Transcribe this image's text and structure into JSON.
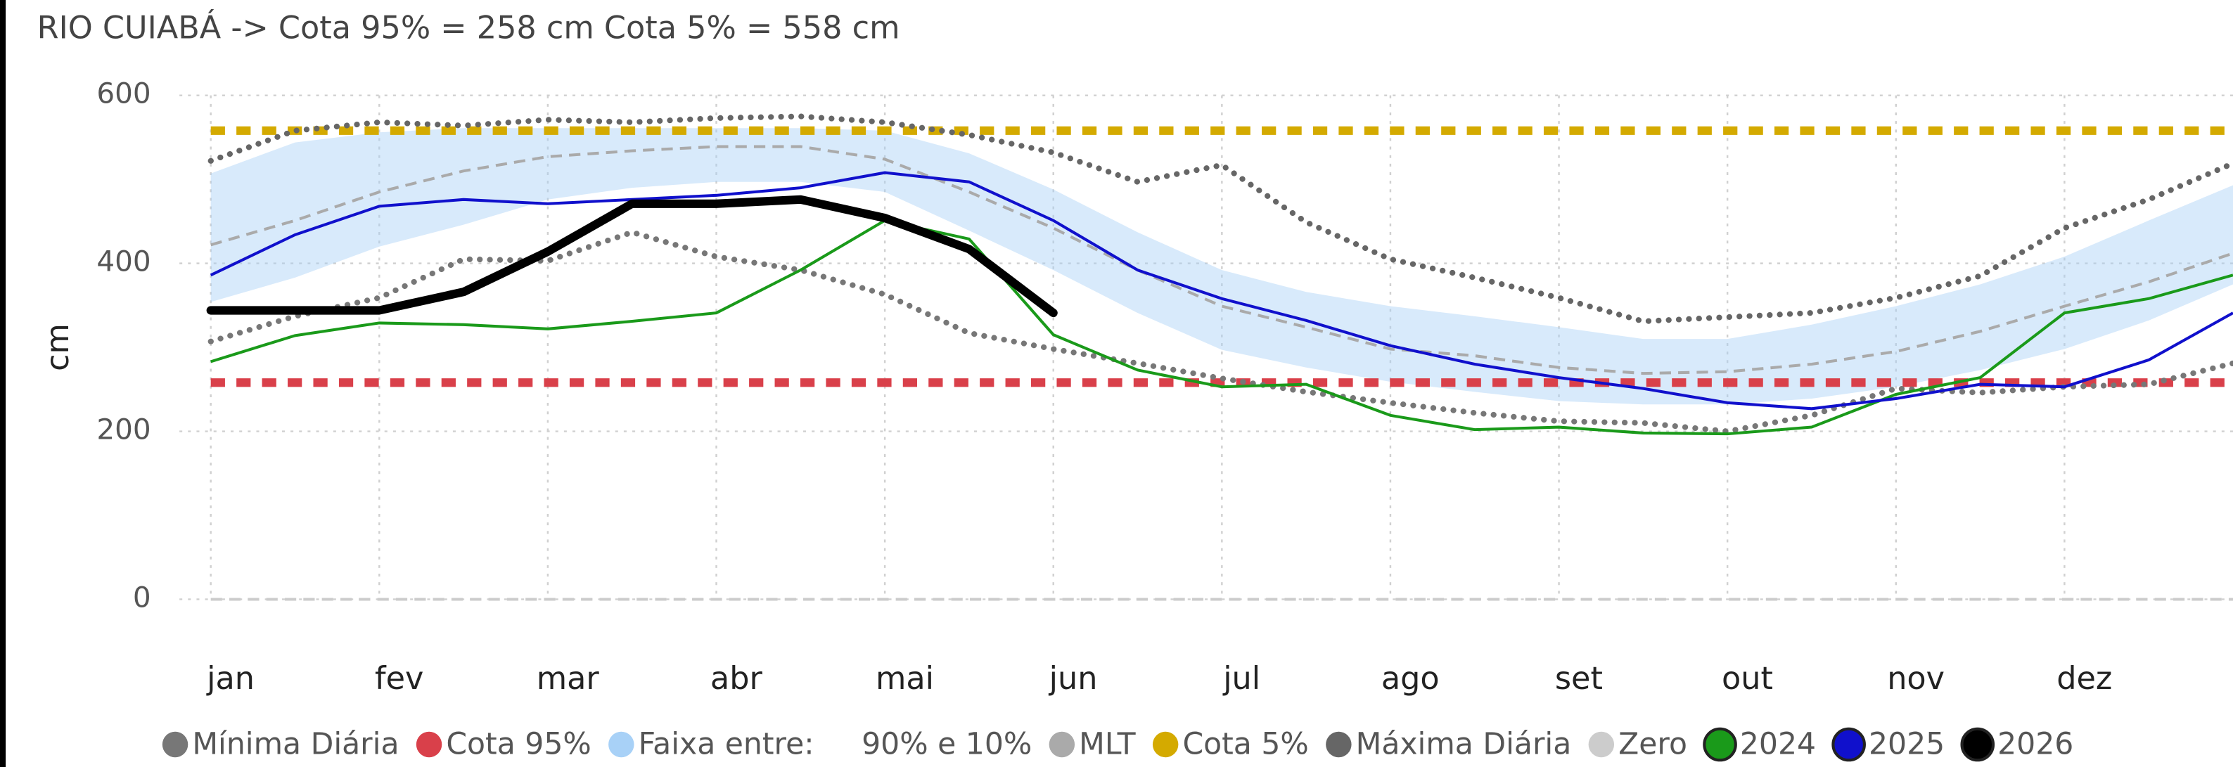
{
  "chart_data": {
    "type": "line",
    "title": "RIO CUIABÁ -> Cota 95% = 258 cm   Cota 5% = 558 cm",
    "y_label": "cm",
    "categories": [
      "jan",
      null,
      "fev",
      null,
      "mar",
      null,
      "abr",
      null,
      "mai",
      null,
      "jun",
      null,
      "jul",
      null,
      "ago",
      null,
      "set",
      null,
      "out",
      null,
      "nov",
      null,
      "dez",
      null,
      null
    ],
    "ylim": [
      0,
      600
    ],
    "yticks": [
      0,
      200,
      400,
      600
    ],
    "grid": true,
    "series": [
      {
        "name": "Mínima Diária",
        "kind": "line",
        "style": "dotted",
        "color": "#777777",
        "values": [
          307,
          337,
          359,
          405,
          403,
          437,
          408,
          392,
          363,
          317,
          298,
          281,
          263,
          247,
          234,
          222,
          212,
          210,
          200,
          219,
          251,
          246,
          253,
          256,
          281
        ]
      },
      {
        "name": "Cota 95%",
        "kind": "hline",
        "style": "dashed",
        "color": "#d9404a",
        "value": 258
      },
      {
        "name": "Faixa entre:     90% e 10%",
        "kind": "band",
        "color": "#a8d1f7",
        "upper": [
          507,
          544,
          556,
          561,
          561,
          561,
          561,
          561,
          558,
          531,
          488,
          437,
          392,
          366,
          349,
          337,
          324,
          310,
          310,
          327,
          349,
          375,
          408,
          451,
          493
        ],
        "lower": [
          354,
          383,
          420,
          446,
          476,
          490,
          497,
          497,
          485,
          439,
          392,
          341,
          297,
          276,
          259,
          247,
          236,
          232,
          232,
          239,
          253,
          273,
          298,
          332,
          375
        ]
      },
      {
        "name": "MLT",
        "kind": "line",
        "style": "dashed",
        "color": "#aaaaaa",
        "values": [
          422,
          451,
          485,
          510,
          527,
          534,
          539,
          539,
          524,
          485,
          442,
          392,
          349,
          324,
          298,
          290,
          276,
          269,
          271,
          280,
          295,
          319,
          349,
          378,
          412
        ]
      },
      {
        "name": "Cota 5%",
        "kind": "hline",
        "style": "dashed",
        "color": "#d4aa00",
        "value": 558
      },
      {
        "name": "Máxima Diária",
        "kind": "line",
        "style": "dotted",
        "color": "#666666",
        "values": [
          522,
          558,
          568,
          564,
          571,
          568,
          573,
          575,
          568,
          553,
          532,
          497,
          517,
          449,
          405,
          383,
          359,
          331,
          336,
          341,
          359,
          385,
          442,
          476,
          519
        ]
      },
      {
        "name": "Zero",
        "kind": "hline",
        "style": "dashed",
        "color": "#cccccc",
        "value": 0
      },
      {
        "name": "2024",
        "kind": "line",
        "style": "solid",
        "color": "#1a9a1a",
        "values": [
          283,
          314,
          329,
          327,
          322,
          331,
          341,
          392,
          451,
          429,
          315,
          273,
          253,
          256,
          219,
          202,
          205,
          198,
          197,
          205,
          244,
          264,
          341,
          358,
          386
        ]
      },
      {
        "name": "2025",
        "kind": "line",
        "style": "solid",
        "color": "#1010cc",
        "values": [
          386,
          434,
          468,
          476,
          471,
          476,
          481,
          490,
          508,
          497,
          451,
          392,
          358,
          332,
          302,
          280,
          264,
          251,
          234,
          227,
          239,
          256,
          253,
          285,
          341
        ]
      },
      {
        "name": "2026",
        "kind": "line",
        "style": "thick",
        "color": "#000000",
        "values": [
          344,
          344,
          344,
          366,
          414,
          471,
          471,
          476,
          454,
          417,
          341,
          null,
          null,
          null,
          null,
          null,
          null,
          null,
          null,
          null,
          null,
          null,
          null,
          null,
          null
        ]
      }
    ]
  }
}
